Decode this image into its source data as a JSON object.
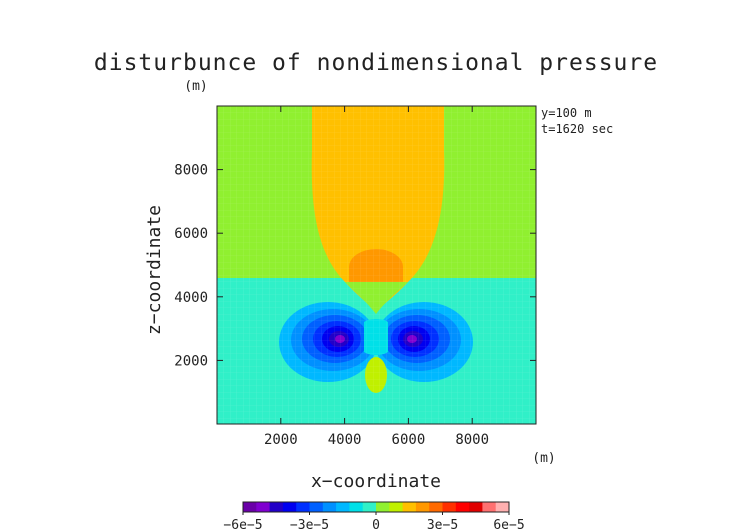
{
  "chart_data": {
    "type": "heatmap",
    "title": "disturbunce of nondimensional pressure",
    "unit_label": "(m)",
    "xlabel": "x−coordinate",
    "ylabel": "z−coordinate",
    "x_unit": "(m)",
    "info_lines": [
      "y=100  m",
      "t=1620 sec"
    ],
    "xlim": [
      0,
      10000
    ],
    "ylim": [
      0,
      10000
    ],
    "x_ticks": [
      2000,
      4000,
      6000,
      8000
    ],
    "y_ticks": [
      2000,
      4000,
      6000,
      8000
    ],
    "grid": false,
    "colorbar": {
      "min": -6e-05,
      "max": 6e-05,
      "tick_values": [
        -6e-05,
        -3e-05,
        0,
        3e-05,
        6e-05
      ],
      "tick_labels": [
        "−6e−5",
        "−3e−5",
        "0",
        "3e−5",
        "6e−5"
      ],
      "colors": [
        "#6a00a8",
        "#8000d0",
        "#2200c8",
        "#0000f0",
        "#0030ff",
        "#0060ff",
        "#0090ff",
        "#00b8ff",
        "#00e0e8",
        "#30f0c8",
        "#90f030",
        "#c0f000",
        "#ffc000",
        "#ff9800",
        "#ff6a00",
        "#ff3000",
        "#ff0000",
        "#e00000",
        "#ff7070",
        "#ffb0b0"
      ]
    },
    "features": [
      {
        "name": "background-upper",
        "level": 3e-06,
        "color": "#90f030"
      },
      {
        "name": "background-lower",
        "level": -3e-06,
        "color": "#30f0c8"
      },
      {
        "name": "upper-plume",
        "x_range": [
          2950,
          7100
        ],
        "z_range": [
          3700,
          10000
        ],
        "level": 1.2e-05,
        "color": "#ffc000"
      },
      {
        "name": "plume-core",
        "center": [
          5000,
          4700
        ],
        "level": 2e-05,
        "color": "#ff9800"
      },
      {
        "name": "left-low",
        "center": [
          3900,
          2750
        ],
        "min_level": -6e-05
      },
      {
        "name": "right-low",
        "center": [
          6150,
          2750
        ],
        "min_level": -6e-05
      },
      {
        "name": "bottom-blob",
        "center": [
          5000,
          1500
        ],
        "level": 3e-06,
        "color": "#c0f000"
      }
    ]
  }
}
